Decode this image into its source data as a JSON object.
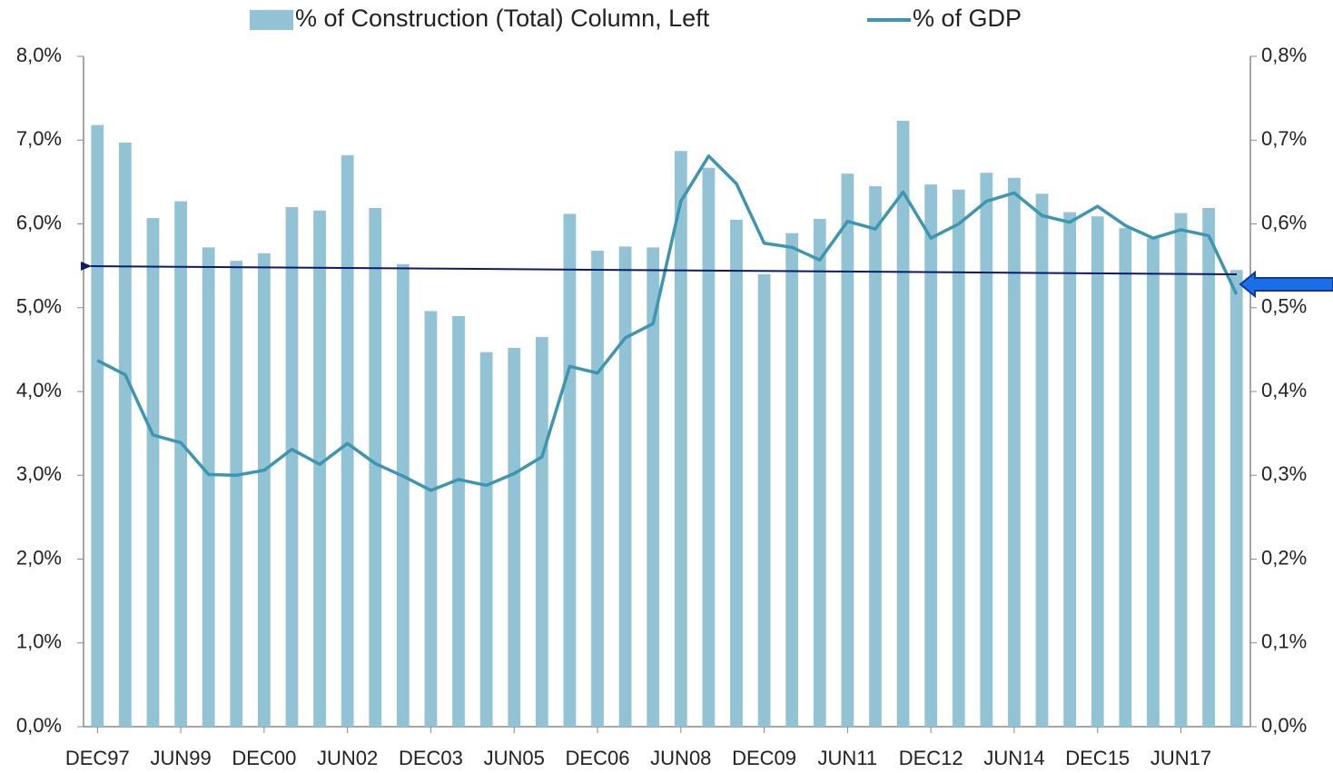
{
  "chart_data": {
    "type": "bar-line",
    "categories": [
      "DEC97",
      null,
      null,
      "JUN99",
      null,
      null,
      "DEC00",
      null,
      null,
      "JUN02",
      null,
      null,
      "DEC03",
      null,
      null,
      "JUN05",
      null,
      null,
      "DEC06",
      null,
      null,
      "JUN08",
      null,
      null,
      "DEC09",
      null,
      null,
      "JUN11",
      null,
      null,
      "DEC12",
      null,
      null,
      "JUN14",
      null,
      null,
      "DEC15",
      null,
      null,
      "JUN17",
      null,
      null
    ],
    "series": [
      {
        "name": "% of Construction (Total) Column, Left",
        "type": "bar",
        "axis": "y",
        "color": "#92c3d5",
        "values": [
          7.18,
          6.97,
          6.07,
          6.27,
          5.72,
          5.56,
          5.65,
          6.2,
          6.16,
          6.82,
          6.19,
          5.52,
          4.96,
          4.9,
          4.47,
          4.52,
          4.65,
          6.12,
          5.68,
          5.73,
          5.72,
          6.87,
          6.67,
          6.05,
          5.4,
          5.89,
          6.06,
          6.6,
          6.45,
          7.23,
          6.47,
          6.41,
          6.61,
          6.55,
          6.36,
          6.14,
          6.09,
          5.95,
          5.83,
          6.13,
          6.19,
          5.45
        ]
      },
      {
        "name": "% of GDP",
        "type": "line",
        "axis": "y2",
        "color": "#3d96b0",
        "values": [
          0.437,
          0.42,
          0.348,
          0.339,
          0.301,
          0.3,
          0.306,
          0.331,
          0.313,
          0.338,
          0.314,
          0.299,
          0.282,
          0.295,
          0.288,
          0.302,
          0.322,
          0.43,
          0.422,
          0.464,
          0.481,
          0.627,
          0.681,
          0.648,
          0.577,
          0.572,
          0.557,
          0.603,
          0.594,
          0.638,
          0.583,
          0.6,
          0.627,
          0.637,
          0.61,
          0.602,
          0.621,
          0.598,
          0.583,
          0.593,
          0.586,
          0.516
        ]
      }
    ],
    "ylim": [
      0,
      8
    ],
    "yticks": [
      {
        "value": 0,
        "label": "0,0%"
      },
      {
        "value": 1,
        "label": "1,0%"
      },
      {
        "value": 2,
        "label": "2,0%"
      },
      {
        "value": 3,
        "label": "3,0%"
      },
      {
        "value": 4,
        "label": "4,0%"
      },
      {
        "value": 5,
        "label": "5,0%"
      },
      {
        "value": 6,
        "label": "6,0%"
      },
      {
        "value": 7,
        "label": "7,0%"
      },
      {
        "value": 8,
        "label": "8,0%"
      }
    ],
    "y2lim": [
      0,
      0.8
    ],
    "y2ticks": [
      {
        "value": 0,
        "label": "0,0%"
      },
      {
        "value": 0.1,
        "label": "0,1%"
      },
      {
        "value": 0.2,
        "label": "0,2%"
      },
      {
        "value": 0.3,
        "label": "0,3%"
      },
      {
        "value": 0.4,
        "label": "0,4%"
      },
      {
        "value": 0.5,
        "label": "0,5%"
      },
      {
        "value": 0.6,
        "label": "0,6%"
      },
      {
        "value": 0.7,
        "label": "0,7%"
      },
      {
        "value": 0.8,
        "label": "0,8%"
      }
    ],
    "grid": false,
    "legend": "top"
  }
}
